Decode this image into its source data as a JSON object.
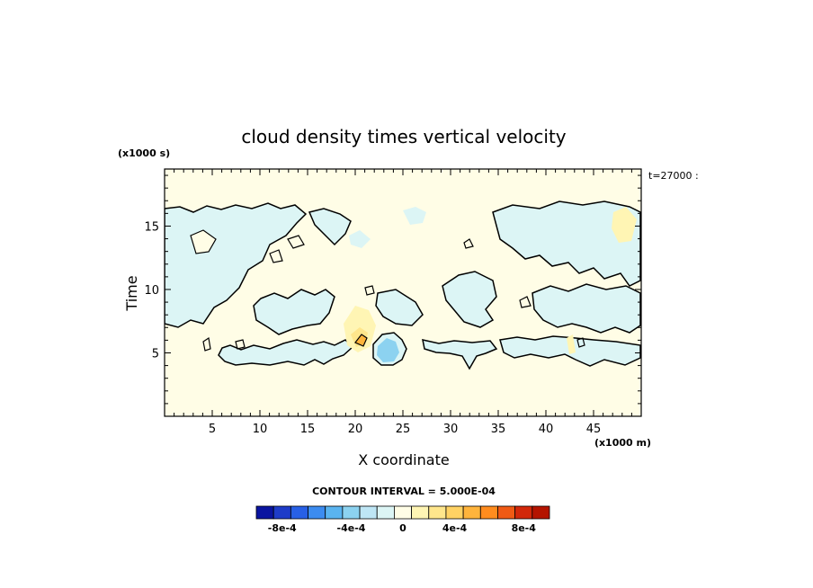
{
  "chart_data": {
    "type": "heatmap",
    "title": "cloud density times vertical velocity",
    "xlabel": "X coordinate",
    "ylabel": "Time",
    "x_units": "(x1000 m)",
    "y_units": "(x1000 s)",
    "x_range": [
      0,
      50
    ],
    "y_range": [
      0,
      19.5
    ],
    "x_ticks": [
      5,
      10,
      15,
      20,
      25,
      30,
      35,
      40,
      45
    ],
    "y_ticks": [
      5,
      10,
      15
    ],
    "annotation": "t=27000 :",
    "contour_interval_text": "CONTOUR INTERVAL = 5.000E-04",
    "colorbar": {
      "tick_labels": [
        "-8e-4",
        "-4e-4",
        "0",
        "4e-4",
        "8e-4"
      ],
      "colors": [
        "#0a14a0",
        "#1e3cc8",
        "#2860e6",
        "#3c8cf0",
        "#5ab4f0",
        "#8cd2f0",
        "#bee6f5",
        "#dcf5f5",
        "#fffde6",
        "#fff5b4",
        "#ffe68c",
        "#ffd264",
        "#ffb43c",
        "#ff8c1e",
        "#f05a14",
        "#d2280a",
        "#b41400"
      ]
    },
    "features": [
      {
        "name": "negative band near t=5",
        "x_range": [
          3,
          49
        ],
        "t_range": [
          3.8,
          6.5
        ],
        "sign": "negative"
      },
      {
        "name": "upper band",
        "x_range": [
          0,
          50
        ],
        "t_range": [
          8,
          17.5
        ],
        "sign": "mixed"
      },
      {
        "name": "strong negative cell",
        "x": 23.5,
        "t": 5.2,
        "sign": "negative"
      },
      {
        "name": "positive cell",
        "x": 20.5,
        "t": 6.5,
        "sign": "positive"
      }
    ]
  }
}
